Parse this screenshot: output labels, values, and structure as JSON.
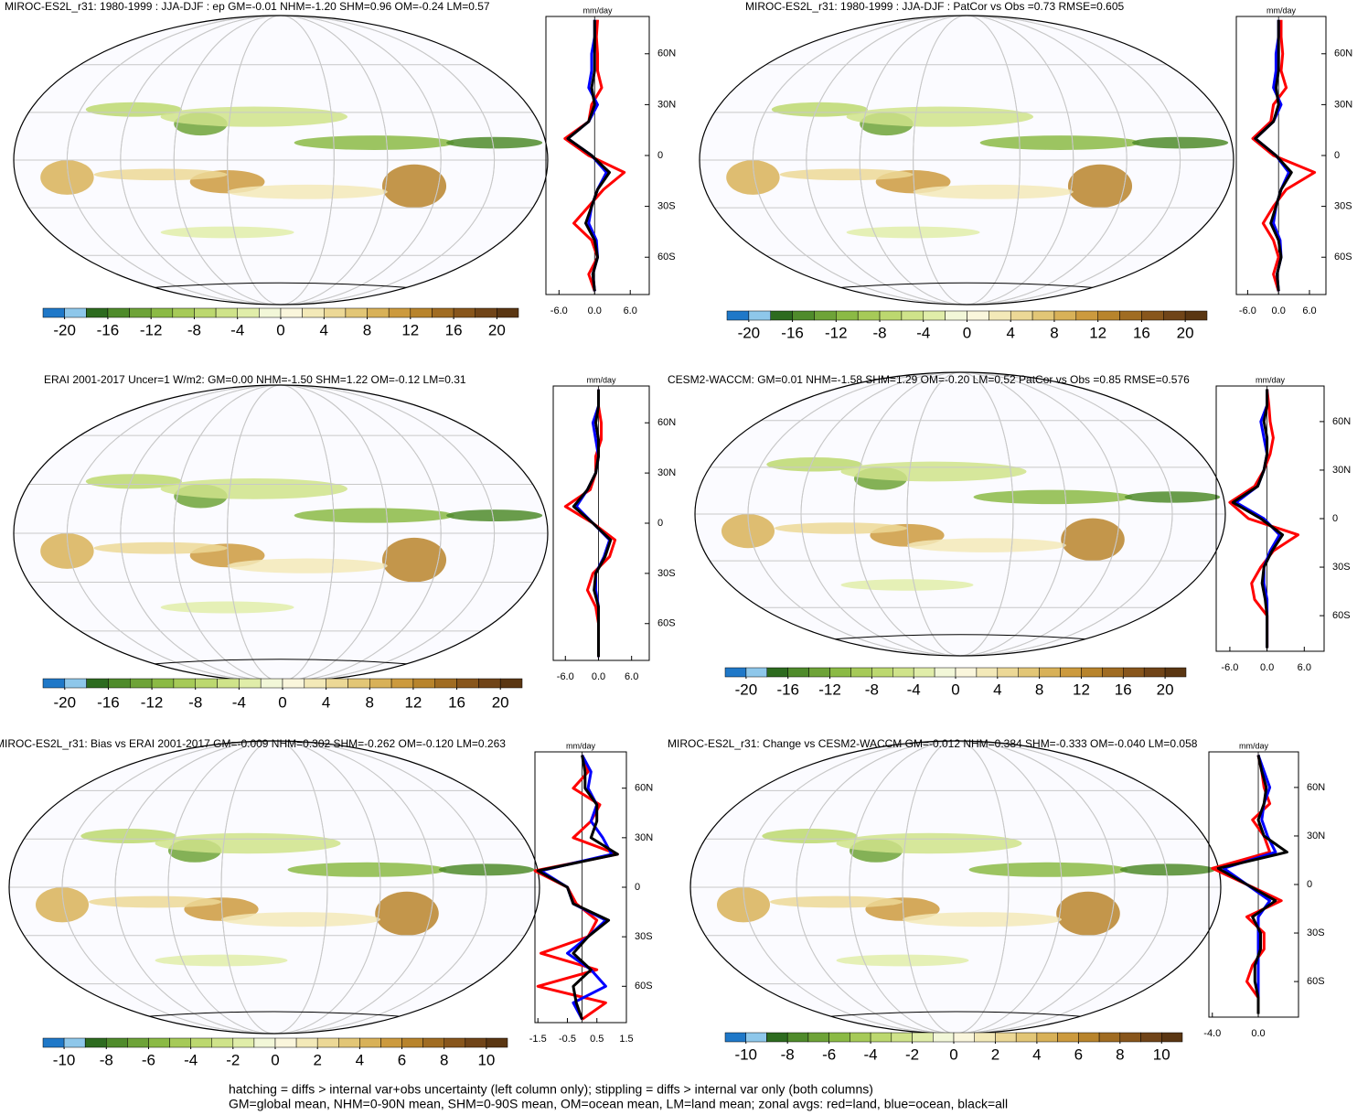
{
  "chart_data": [
    {
      "type": "map",
      "title": "MIROC-ES2L_r31: 1980-1999 : JJA-DJF : ep GM=-0.01 NHM=-1.20 SHM=0.96 OM=-0.24 LM=0.57",
      "colorbar": {
        "lim": [
          -22,
          22
        ],
        "ticks": [
          -20,
          -16,
          -12,
          -8,
          -4,
          0,
          4,
          8,
          12,
          16,
          20
        ],
        "colors": [
          "#1f78c8",
          "#8ec7ea",
          "#2d6b1f",
          "#4f8b2b",
          "#6ea338",
          "#8bba45",
          "#a6ca58",
          "#bcd86f",
          "#cfe38a",
          "#e0eda9",
          "#f2f7d8",
          "#faf6dc",
          "#f3e9b8",
          "#ecd896",
          "#e2c676",
          "#d8b158",
          "#cc9a3e",
          "#b8842c",
          "#a06c22",
          "#88561c",
          "#704418",
          "#5a3612"
        ]
      },
      "profile": {
        "unit": "mm/day",
        "xlim": [
          -8.2,
          9.2
        ],
        "xticks": [
          {
            "value": -6,
            "label": "-6.0"
          },
          {
            "value": 0,
            "label": "0.0"
          },
          {
            "value": 6,
            "label": "6.0"
          }
        ],
        "ylim": [
          -82,
          82
        ],
        "yticks": [
          {
            "value": 60,
            "label": "60N"
          },
          {
            "value": 30,
            "label": "30N"
          },
          0,
          {
            "value": -30,
            "label": "30S"
          },
          {
            "value": -60,
            "label": "60S"
          }
        ],
        "lat": [
          80,
          70,
          60,
          50,
          40,
          30,
          20,
          10,
          0,
          -10,
          -20,
          -30,
          -40,
          -50,
          -60,
          -70,
          -80
        ],
        "series": [
          {
            "color": "#ff0000",
            "values": [
              0.5,
              0.3,
              0.5,
              0.5,
              1.2,
              -0.5,
              -1,
              -5,
              -1,
              5,
              1.5,
              -1,
              -3.5,
              -0.5,
              0.5,
              -1,
              0
            ]
          },
          {
            "color": "#0000ff",
            "values": [
              0,
              0,
              -0.5,
              -0.5,
              -1,
              0.5,
              -1,
              -4.5,
              -0.5,
              2,
              0.5,
              -0.5,
              -1,
              0.3,
              0.5,
              -0.3,
              0
            ]
          },
          {
            "color": "#000000",
            "values": [
              0,
              0,
              0,
              0,
              -0.5,
              0,
              -1,
              -4.5,
              -0.5,
              2.5,
              0.5,
              -0.5,
              -1.5,
              0,
              0.5,
              -0.3,
              0
            ]
          }
        ]
      }
    },
    {
      "type": "map",
      "title": "MIROC-ES2L_r31: 1980-1999 : JJA-DJF : PatCor vs Obs =0.73 RMSE=0.605",
      "colorbar": {
        "lim": [
          -22,
          22
        ],
        "ticks": [
          -20,
          -16,
          -12,
          -8,
          -4,
          0,
          4,
          8,
          12,
          16,
          20
        ],
        "colors": [
          "#1f78c8",
          "#8ec7ea",
          "#2d6b1f",
          "#4f8b2b",
          "#6ea338",
          "#8bba45",
          "#a6ca58",
          "#bcd86f",
          "#cfe38a",
          "#e0eda9",
          "#f2f7d8",
          "#faf6dc",
          "#f3e9b8",
          "#ecd896",
          "#e2c676",
          "#d8b158",
          "#cc9a3e",
          "#b8842c",
          "#a06c22",
          "#88561c",
          "#704418",
          "#5a3612"
        ]
      },
      "profile": {
        "unit": "mm/day",
        "xlim": [
          -8.2,
          9.2
        ],
        "xticks": [
          {
            "value": -6,
            "label": "-6.0"
          },
          {
            "value": 0,
            "label": "0.0"
          },
          {
            "value": 6,
            "label": "6.0"
          }
        ],
        "ylim": [
          -82,
          82
        ],
        "yticks": [
          {
            "value": 60,
            "label": "60N"
          },
          {
            "value": 30,
            "label": "30N"
          },
          0,
          {
            "value": -30,
            "label": "30S"
          },
          {
            "value": -60,
            "label": "60S"
          }
        ],
        "lat": [
          80,
          70,
          60,
          50,
          40,
          30,
          20,
          10,
          0,
          -10,
          -20,
          -30,
          -40,
          -50,
          -60,
          -70,
          -80
        ],
        "series": [
          {
            "color": "#ff0000",
            "values": [
              0.5,
              0.5,
              0.8,
              0.5,
              1.5,
              -1,
              -1.5,
              -5,
              -1,
              7,
              1.5,
              -1,
              -3,
              -1,
              0,
              -1,
              0
            ]
          },
          {
            "color": "#0000ff",
            "values": [
              0,
              0,
              -0.5,
              -0.5,
              -1,
              0.5,
              -1,
              -4.5,
              -0.5,
              2,
              0.5,
              -0.5,
              -1,
              0.3,
              0.5,
              -0.3,
              0
            ]
          },
          {
            "color": "#000000",
            "values": [
              0,
              0,
              0,
              0,
              -0.5,
              0,
              -1,
              -4.5,
              -0.5,
              2.5,
              0.5,
              -0.5,
              -1.5,
              0,
              0.5,
              -0.3,
              0
            ]
          }
        ]
      }
    },
    {
      "type": "map",
      "title": "ERAI 2001-2017 Uncer=1 W/m2: GM=0.00 NHM=-1.50 SHM=1.22 OM=-0.12 LM=0.31",
      "colorbar": {
        "lim": [
          -22,
          22
        ],
        "ticks": [
          -20,
          -16,
          -12,
          -8,
          -4,
          0,
          4,
          8,
          12,
          16,
          20
        ],
        "colors": [
          "#1f78c8",
          "#8ec7ea",
          "#2d6b1f",
          "#4f8b2b",
          "#6ea338",
          "#8bba45",
          "#a6ca58",
          "#bcd86f",
          "#cfe38a",
          "#e0eda9",
          "#f2f7d8",
          "#faf6dc",
          "#f3e9b8",
          "#ecd896",
          "#e2c676",
          "#d8b158",
          "#cc9a3e",
          "#b8842c",
          "#a06c22",
          "#88561c",
          "#704418",
          "#5a3612"
        ]
      },
      "profile": {
        "unit": "mm/day",
        "xlim": [
          -8.2,
          9.2
        ],
        "xticks": [
          {
            "value": -6,
            "label": "-6.0"
          },
          {
            "value": 0,
            "label": "0.0"
          },
          {
            "value": 6,
            "label": "6.0"
          }
        ],
        "ylim": [
          -82,
          82
        ],
        "yticks": [
          {
            "value": 60,
            "label": "60N"
          },
          {
            "value": 30,
            "label": "30N"
          },
          0,
          {
            "value": -30,
            "label": "30S"
          },
          {
            "value": -60,
            "label": "60S"
          }
        ],
        "lat": [
          80,
          70,
          60,
          50,
          40,
          30,
          20,
          10,
          0,
          -10,
          -20,
          -30,
          -40,
          -50,
          -60,
          -70,
          -80
        ],
        "series": [
          {
            "color": "#ff0000",
            "values": [
              0,
              0,
              0.5,
              0.5,
              -0.5,
              -0.5,
              -1.5,
              -6,
              -1,
              3,
              2,
              -1,
              -2,
              -0.5,
              0,
              0,
              0
            ]
          },
          {
            "color": "#0000ff",
            "values": [
              0,
              0,
              -1,
              -0.5,
              0,
              -0.5,
              -2,
              -4,
              -1,
              2,
              1,
              -0.5,
              -0.5,
              0,
              0,
              0,
              0
            ]
          },
          {
            "color": "#000000",
            "values": [
              0,
              0,
              -0.5,
              0,
              0,
              -0.5,
              -2,
              -4.5,
              -1,
              2.2,
              1.2,
              -0.5,
              -0.8,
              0,
              0,
              0,
              0
            ]
          }
        ]
      }
    },
    {
      "type": "map",
      "title": "CESM2-WACCM: GM=0.01 NHM=-1.58 SHM=1.29 OM=-0.20 LM=0.52 PatCor vs Obs =0.85 RMSE=0.576",
      "colorbar": {
        "lim": [
          -22,
          22
        ],
        "ticks": [
          -20,
          -16,
          -12,
          -8,
          -4,
          0,
          4,
          8,
          12,
          16,
          20
        ],
        "colors": [
          "#1f78c8",
          "#8ec7ea",
          "#2d6b1f",
          "#4f8b2b",
          "#6ea338",
          "#8bba45",
          "#a6ca58",
          "#bcd86f",
          "#cfe38a",
          "#e0eda9",
          "#f2f7d8",
          "#faf6dc",
          "#f3e9b8",
          "#ecd896",
          "#e2c676",
          "#d8b158",
          "#cc9a3e",
          "#b8842c",
          "#a06c22",
          "#88561c",
          "#704418",
          "#5a3612"
        ]
      },
      "profile": {
        "unit": "mm/day",
        "xlim": [
          -8.2,
          9.2
        ],
        "xticks": [
          {
            "value": -6,
            "label": "-6.0"
          },
          {
            "value": 0,
            "label": "0.0"
          },
          {
            "value": 6,
            "label": "6.0"
          }
        ],
        "ylim": [
          -82,
          82
        ],
        "yticks": [
          {
            "value": 60,
            "label": "60N"
          },
          {
            "value": 30,
            "label": "30N"
          },
          0,
          {
            "value": -30,
            "label": "30S"
          },
          {
            "value": -60,
            "label": "60S"
          }
        ],
        "lat": [
          80,
          70,
          60,
          50,
          40,
          30,
          20,
          10,
          0,
          -10,
          -20,
          -30,
          -40,
          -50,
          -60,
          -70,
          -80
        ],
        "series": [
          {
            "color": "#ff0000",
            "values": [
              0,
              0.3,
              0.5,
              1,
              0.5,
              -0.5,
              -2,
              -6,
              -3,
              5,
              1,
              -1,
              -2.5,
              -2,
              0,
              0,
              0
            ]
          },
          {
            "color": "#0000ff",
            "values": [
              0,
              0,
              -1,
              -0.5,
              0,
              -0.5,
              -1.5,
              -5,
              -0.5,
              2,
              0.5,
              -0.5,
              -0.5,
              0,
              0,
              0,
              0
            ]
          },
          {
            "color": "#000000",
            "values": [
              0,
              0,
              -0.5,
              0,
              0,
              -0.5,
              -1.5,
              -5.5,
              -1,
              2.5,
              0.8,
              -0.5,
              -0.8,
              -0.3,
              0,
              0,
              0
            ]
          }
        ]
      }
    },
    {
      "type": "map",
      "title": "MIROC-ES2L_r31: Bias vs ERAI 2001-2017 GM=-0.009 NHM=0.302 SHM=-0.262 OM=-0.120 LM=0.263",
      "colorbar": {
        "lim": [
          -11,
          11
        ],
        "ticks": [
          -10,
          -8,
          -6,
          -4,
          -2,
          0,
          2,
          4,
          6,
          8,
          10
        ],
        "colors": [
          "#1f78c8",
          "#8ec7ea",
          "#2d6b1f",
          "#4f8b2b",
          "#6ea338",
          "#8bba45",
          "#a6ca58",
          "#bcd86f",
          "#cfe38a",
          "#e0eda9",
          "#f2f7d8",
          "#faf6dc",
          "#f3e9b8",
          "#ecd896",
          "#e2c676",
          "#d8b158",
          "#cc9a3e",
          "#b8842c",
          "#a06c22",
          "#88561c",
          "#704418",
          "#5a3612"
        ]
      },
      "profile": {
        "unit": "mm/day",
        "xlim": [
          -1.6,
          1.5
        ],
        "xticks": [
          -1.5,
          -0.5,
          0.5,
          1.5
        ],
        "ylim": [
          -82,
          82
        ],
        "yticks": [
          {
            "value": 60,
            "label": "60N"
          },
          {
            "value": 30,
            "label": "30N"
          },
          0,
          {
            "value": -30,
            "label": "30S"
          },
          {
            "value": -60,
            "label": "60S"
          }
        ],
        "lat": [
          80,
          70,
          60,
          50,
          40,
          30,
          20,
          10,
          0,
          -10,
          -20,
          -30,
          -40,
          -50,
          -60,
          -70,
          -80
        ],
        "series": [
          {
            "color": "#ff0000",
            "values": [
              0,
              0.2,
              -0.3,
              0.6,
              0.3,
              -0.3,
              1.2,
              -1.6,
              -0.5,
              -0.2,
              0.5,
              0.2,
              -1.4,
              0.5,
              -1.5,
              0.8,
              0
            ]
          },
          {
            "color": "#0000ff",
            "values": [
              0,
              0.3,
              0.2,
              0.5,
              0.3,
              0.7,
              1,
              -1.4,
              -0.5,
              -0.3,
              0.8,
              0.2,
              -0.5,
              0.3,
              0.8,
              -0.3,
              0
            ]
          },
          {
            "color": "#000000",
            "values": [
              0,
              0.1,
              0.1,
              0.5,
              0.5,
              0.3,
              1.2,
              -1.5,
              -0.5,
              -0.3,
              0.9,
              0.2,
              -0.3,
              0.3,
              -0.3,
              -0.2,
              0
            ]
          }
        ]
      }
    },
    {
      "type": "map",
      "title": "MIROC-ES2L_r31: Change vs CESM2-WACCM GM=-0.012 NHM=0.384 SHM=-0.333 OM=-0.040 LM=0.058",
      "colorbar": {
        "lim": [
          -11,
          11
        ],
        "ticks": [
          -10,
          -8,
          -6,
          -4,
          -2,
          0,
          2,
          4,
          6,
          8,
          10
        ],
        "colors": [
          "#1f78c8",
          "#8ec7ea",
          "#2d6b1f",
          "#4f8b2b",
          "#6ea338",
          "#8bba45",
          "#a6ca58",
          "#bcd86f",
          "#cfe38a",
          "#e0eda9",
          "#f2f7d8",
          "#faf6dc",
          "#f3e9b8",
          "#ecd896",
          "#e2c676",
          "#d8b158",
          "#cc9a3e",
          "#b8842c",
          "#a06c22",
          "#88561c",
          "#704418",
          "#5a3612"
        ]
      },
      "profile": {
        "unit": "mm/day",
        "xlim": [
          -4.3,
          3.5
        ],
        "xticks": [
          {
            "value": -4,
            "label": "-4.0"
          },
          {
            "value": 0,
            "label": "0.0"
          }
        ],
        "ylim": [
          -82,
          82
        ],
        "yticks": [
          {
            "value": 60,
            "label": "60N"
          },
          {
            "value": 30,
            "label": "30N"
          },
          0,
          {
            "value": -30,
            "label": "30S"
          },
          {
            "value": -60,
            "label": "60S"
          }
        ],
        "lat": [
          80,
          70,
          60,
          50,
          40,
          30,
          20,
          10,
          0,
          -10,
          -20,
          -30,
          -40,
          -50,
          -60,
          -70,
          -80
        ],
        "series": [
          {
            "color": "#ff0000",
            "values": [
              0,
              0.3,
              0.5,
              1,
              -0.5,
              0.5,
              1,
              -4,
              -1,
              2,
              -1,
              0.5,
              0.5,
              -0.5,
              -1,
              0,
              0
            ]
          },
          {
            "color": "#0000ff",
            "values": [
              0,
              0.5,
              1,
              0.5,
              0.3,
              0.8,
              1.5,
              -3,
              -1,
              1,
              0,
              0,
              0,
              0,
              0,
              0,
              0
            ]
          },
          {
            "color": "#000000",
            "values": [
              0,
              0.3,
              0.7,
              0.5,
              0,
              0.5,
              2.5,
              -3.5,
              -1,
              1.5,
              -0.5,
              0.2,
              0.2,
              -0.3,
              -0.3,
              0,
              0
            ]
          }
        ]
      }
    }
  ],
  "footer": [
    "hatching = diffs > internal var+obs uncertainty (left column only); stippling = diffs > internal var only (both columns)",
    "GM=global mean, NHM=0-90N mean, SHM=0-90S mean, OM=ocean mean, LM=land mean; zonal avgs: red=land, blue=ocean, black=all"
  ]
}
